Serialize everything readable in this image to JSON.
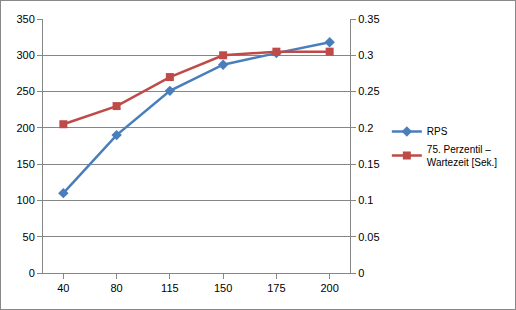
{
  "chart_data": {
    "type": "line",
    "categories": [
      "40",
      "80",
      "115",
      "150",
      "175",
      "200"
    ],
    "series": [
      {
        "name": "RPS",
        "color": "#4a7ebb",
        "marker": "diamond",
        "values": [
          110,
          190,
          251,
          287,
          303,
          318
        ]
      },
      {
        "name": "75. Perzentil – Wartezeit [Sek.]",
        "color": "#be4b48",
        "marker": "square",
        "axis": "y2",
        "values": [
          0.205,
          0.23,
          0.27,
          0.3,
          0.305,
          0.305
        ]
      }
    ],
    "ylim": [
      0,
      350
    ],
    "yticks": [
      0,
      50,
      100,
      150,
      200,
      250,
      300,
      350
    ],
    "y2lim": [
      0,
      0.35
    ],
    "y2ticks": [
      0,
      0.05,
      0.1,
      0.15,
      0.2,
      0.25,
      0.3,
      0.35
    ],
    "grid": true,
    "legend": "right"
  }
}
